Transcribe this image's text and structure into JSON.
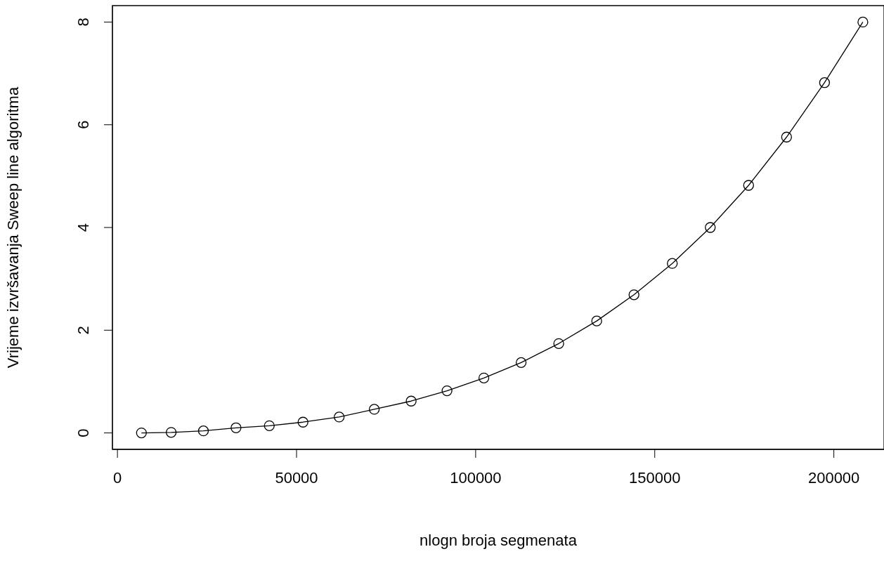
{
  "chart_data": {
    "type": "line",
    "xlabel": "nlogn broja segmenata",
    "ylabel": "Vrijeme izvršavanja Sweep line algoritma",
    "x": [
      6700,
      15000,
      24000,
      33100,
      42400,
      51800,
      61900,
      71700,
      82000,
      92000,
      102300,
      112700,
      123200,
      133800,
      144200,
      154900,
      165500,
      176200,
      186800,
      197400,
      208100
    ],
    "series": [
      {
        "color": "#000000",
        "values": [
          0,
          0.01,
          0.04,
          0.1,
          0.14,
          0.21,
          0.31,
          0.46,
          0.62,
          0.82,
          1.07,
          1.37,
          1.74,
          2.18,
          2.69,
          3.3,
          4.0,
          4.82,
          5.76,
          6.82,
          8.0
        ]
      }
    ],
    "xlim": [
      -1400,
      214000
    ],
    "xticks": [
      0,
      50000,
      100000,
      150000,
      200000
    ],
    "ylim": [
      -0.32,
      8.32
    ],
    "yticks": [
      0,
      2,
      4,
      6,
      8
    ],
    "marker": "circle",
    "line_style": "solid"
  }
}
